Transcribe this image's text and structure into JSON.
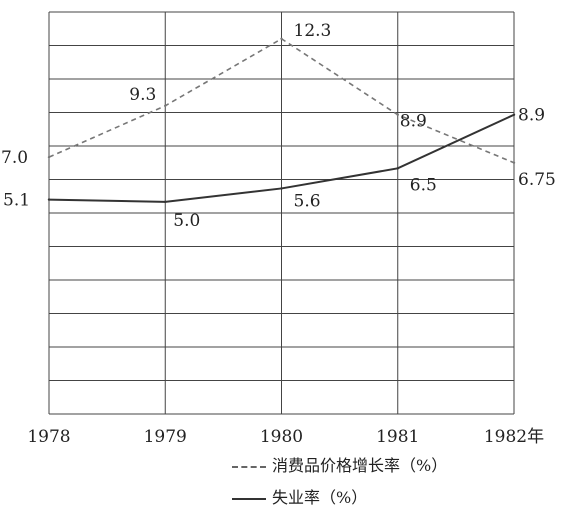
{
  "chart_data": {
    "type": "line",
    "x": [
      "1978",
      "1979",
      "1980",
      "1981",
      "1982"
    ],
    "x_tick_labels": [
      "1978",
      "1979",
      "1980",
      "1981",
      "1982年"
    ],
    "ylim": [
      -4.5,
      13.5
    ],
    "grid": true,
    "legend_position": "bottom-right",
    "series": [
      {
        "name": "消费品价格增长率（%）",
        "style": "dashed",
        "color": "#777777",
        "values": [
          7.0,
          9.3,
          12.3,
          8.9,
          6.75
        ],
        "labels": [
          "7.0",
          "9.3",
          "12.3",
          "8.9",
          "6.75"
        ]
      },
      {
        "name": "失业率（%）",
        "style": "solid",
        "color": "#333333",
        "values": [
          5.1,
          5.0,
          5.6,
          6.5,
          8.9
        ],
        "labels": [
          "5.1",
          "5.0",
          "5.6",
          "6.5",
          "8.9"
        ]
      }
    ]
  }
}
